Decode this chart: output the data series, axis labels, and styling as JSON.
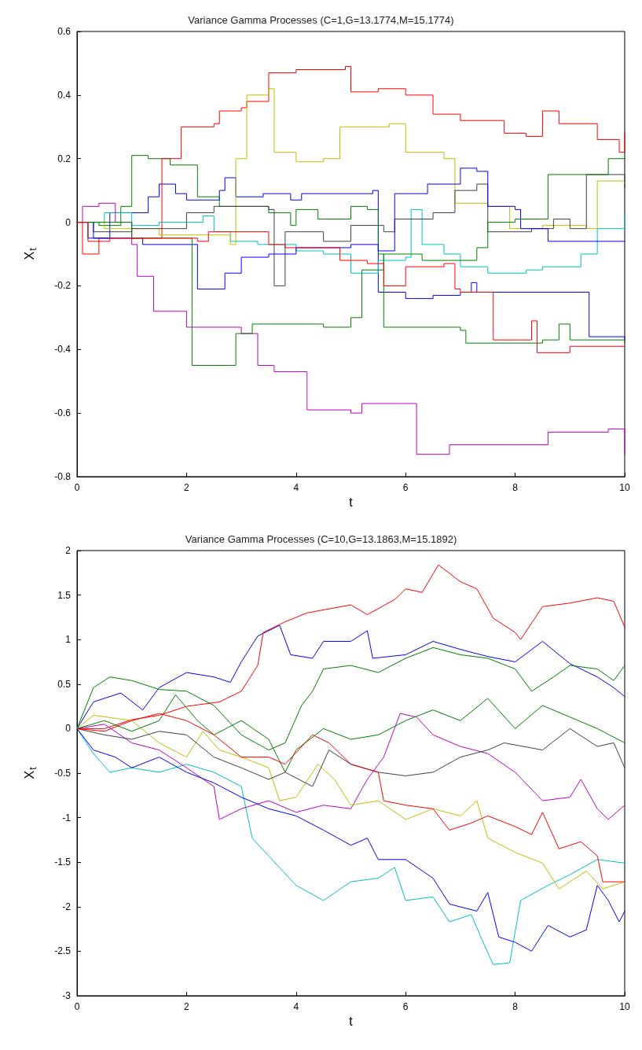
{
  "chart_data": [
    {
      "type": "step",
      "title": "Variance Gamma Processes (C=1,G=13.1774,M=15.1774)",
      "xlabel": "t",
      "ylabel": "X$_{t}$",
      "xlim": [
        0,
        10
      ],
      "ylim": [
        -0.8,
        0.6
      ],
      "xticks": [
        0,
        2,
        4,
        6,
        8,
        10
      ],
      "yticks": [
        -0.8,
        -0.6,
        -0.4,
        -0.2,
        0,
        0.2,
        0.4,
        0.6
      ],
      "grid": false,
      "series": [
        {
          "color": "#0000ff",
          "x": [
            0,
            0.2,
            0.6,
            1.3,
            1.5,
            1.8,
            2.0,
            2.6,
            2.7,
            2.9,
            3.4,
            3.9,
            4.1,
            5.4,
            5.5,
            6.0,
            6.5,
            7.0,
            7.2,
            7.3,
            9.3,
            9.35,
            10
          ],
          "values": [
            0,
            -0.05,
            0.03,
            0.08,
            0.12,
            0.09,
            0.07,
            0.1,
            0.14,
            0.08,
            0.09,
            0.07,
            0.09,
            0.1,
            -0.22,
            -0.24,
            -0.23,
            -0.22,
            -0.19,
            -0.22,
            -0.22,
            -0.36,
            -0.37
          ]
        },
        {
          "color": "#008000",
          "x": [
            0,
            0.4,
            0.8,
            1.0,
            1.3,
            1.7,
            2.2,
            2.6,
            3.5,
            3.9,
            4.0,
            4.4,
            5.0,
            5.3,
            5.5,
            5.6,
            7.0,
            7.1,
            8.5,
            8.8,
            9.0,
            10
          ],
          "values": [
            0,
            -0.01,
            0.05,
            0.21,
            0.2,
            0.18,
            0.08,
            0.05,
            0.03,
            -0.01,
            0.04,
            0.01,
            0.05,
            0.04,
            -0.1,
            -0.33,
            -0.34,
            -0.38,
            -0.37,
            -0.32,
            -0.37,
            -0.38
          ]
        },
        {
          "color": "#ff0000",
          "x": [
            0,
            0.1,
            0.4,
            1.55,
            1.9,
            2.5,
            2.6,
            3.0,
            3.1,
            3.5,
            4.0,
            4.9,
            5.0,
            5.5,
            6.0,
            6.5,
            7.0,
            7.8,
            8.2,
            8.5,
            8.8,
            9.5,
            9.9,
            10
          ],
          "values": [
            0,
            -0.1,
            -0.05,
            0.2,
            0.3,
            0.31,
            0.35,
            0.36,
            0.38,
            0.47,
            0.48,
            0.49,
            0.41,
            0.42,
            0.4,
            0.34,
            0.32,
            0.28,
            0.27,
            0.35,
            0.31,
            0.26,
            0.22,
            0.28
          ]
        },
        {
          "color": "#00bfbf",
          "x": [
            0,
            0.5,
            1.0,
            1.5,
            2.3,
            2.5,
            2.8,
            3.3,
            4.0,
            4.5,
            5.0,
            5.5,
            6.0,
            6.1,
            6.3,
            6.7,
            7.0,
            7.5,
            8.2,
            8.5,
            9.2,
            9.5,
            10
          ],
          "values": [
            0,
            0.03,
            -0.01,
            0,
            0.02,
            -0.03,
            -0.06,
            -0.07,
            -0.09,
            -0.1,
            -0.16,
            -0.12,
            -0.11,
            0.04,
            -0.07,
            -0.1,
            -0.14,
            -0.16,
            -0.15,
            -0.14,
            -0.1,
            -0.02,
            0.02
          ]
        },
        {
          "color": "#bf00bf",
          "x": [
            0,
            0.1,
            0.4,
            0.7,
            1.0,
            1.1,
            1.4,
            2.0,
            3.0,
            3.3,
            3.6,
            4.2,
            5.0,
            5.2,
            5.9,
            6.2,
            6.8,
            8.0,
            8.6,
            9.7,
            10
          ],
          "values": [
            0,
            0.05,
            0.06,
            0,
            -0.07,
            -0.17,
            -0.28,
            -0.33,
            -0.35,
            -0.45,
            -0.47,
            -0.59,
            -0.6,
            -0.57,
            -0.57,
            -0.73,
            -0.7,
            -0.7,
            -0.66,
            -0.65,
            -0.73
          ]
        },
        {
          "color": "#bfbf00",
          "x": [
            0,
            0.5,
            1.5,
            2.8,
            2.9,
            3.1,
            3.5,
            3.6,
            4.0,
            4.5,
            4.8,
            5.7,
            6.0,
            6.7,
            6.9,
            7.5,
            7.9,
            8.5,
            9.3,
            9.5,
            10
          ],
          "values": [
            0,
            -0.02,
            -0.04,
            -0.07,
            0.2,
            0.4,
            0.42,
            0.22,
            0.19,
            0.2,
            0.3,
            0.31,
            0.22,
            0.2,
            0.06,
            0.05,
            -0.02,
            -0.01,
            -0.02,
            0.13,
            0.12
          ]
        },
        {
          "color": "#404040",
          "x": [
            0,
            0.3,
            1.0,
            2.0,
            2.5,
            3.5,
            3.6,
            3.8,
            4.5,
            5.0,
            5.6,
            5.8,
            6.5,
            6.9,
            7.3,
            7.5,
            8.3,
            8.7,
            9.0,
            9.3,
            10
          ],
          "values": [
            0,
            -0.03,
            -0.02,
            0.03,
            0.05,
            0.04,
            -0.2,
            -0.03,
            -0.06,
            -0.01,
            -0.03,
            0.01,
            0.03,
            0.1,
            0.12,
            -0.03,
            -0.02,
            0.01,
            -0.02,
            0.15,
            0.11
          ]
        },
        {
          "color": "#0000ff",
          "x": [
            0,
            0.3,
            1.2,
            2.2,
            2.7,
            3.0,
            3.5,
            4.0,
            5.0,
            5.5,
            5.8,
            6.4,
            7.0,
            7.3,
            7.5,
            8.0,
            8.1,
            8.6,
            10
          ],
          "values": [
            0,
            -0.05,
            -0.07,
            -0.21,
            -0.16,
            -0.11,
            -0.1,
            -0.08,
            -0.07,
            -0.09,
            0.09,
            0.12,
            0.17,
            0.16,
            0.05,
            0.04,
            -0.02,
            -0.06,
            -0.06
          ]
        },
        {
          "color": "#008000",
          "x": [
            0,
            1.0,
            2.1,
            2.8,
            2.9,
            3.2,
            4.5,
            5.0,
            5.2,
            5.6,
            6.3,
            7.3,
            7.5,
            8.0,
            8.6,
            9.7,
            10
          ],
          "values": [
            0,
            -0.05,
            -0.45,
            -0.45,
            -0.35,
            -0.32,
            -0.33,
            -0.3,
            -0.15,
            -0.1,
            -0.12,
            -0.08,
            0,
            0.01,
            0.15,
            0.2,
            0.2
          ]
        },
        {
          "color": "#ff0000",
          "x": [
            0,
            0.2,
            0.6,
            2.2,
            2.4,
            3.5,
            3.8,
            4.8,
            5.3,
            5.6,
            6.0,
            6.7,
            6.9,
            7.0,
            7.6,
            8.1,
            8.3,
            8.4,
            9.0,
            10
          ],
          "values": [
            0,
            -0.06,
            -0.05,
            -0.06,
            -0.03,
            -0.07,
            -0.08,
            -0.12,
            -0.13,
            -0.2,
            -0.14,
            -0.13,
            -0.21,
            -0.22,
            -0.37,
            -0.37,
            -0.31,
            -0.41,
            -0.39,
            -0.39
          ]
        }
      ]
    },
    {
      "type": "line",
      "title": "Variance Gamma Processes (C=10,G=13.1863,M=15.1892)",
      "xlabel": "t",
      "ylabel": "X$_{t}$",
      "xlim": [
        0,
        10
      ],
      "ylim": [
        -3,
        2
      ],
      "xticks": [
        0,
        2,
        4,
        6,
        8,
        10
      ],
      "yticks": [
        -3,
        -2.5,
        -2,
        -1.5,
        -1,
        -0.5,
        0,
        0.5,
        1,
        1.5,
        2
      ],
      "grid": false,
      "series": [
        {
          "color": "#0000ff",
          "x": [
            0,
            0.3,
            0.8,
            1.2,
            1.5,
            2,
            2.5,
            2.8,
            3,
            3.3,
            3.7,
            3.9,
            4.3,
            4.5,
            5,
            5.3,
            5.4,
            6,
            6.5,
            7,
            7.5,
            8,
            8.5,
            9,
            9.5,
            9.8,
            10
          ],
          "values": [
            0,
            0.3,
            0.4,
            0.21,
            0.46,
            0.63,
            0.58,
            0.52,
            0.75,
            1.04,
            1.16,
            0.83,
            0.79,
            0.98,
            0.98,
            1.1,
            0.79,
            0.83,
            0.98,
            0.89,
            0.81,
            0.75,
            0.98,
            0.73,
            0.58,
            0.46,
            0.36
          ]
        },
        {
          "color": "#008000",
          "x": [
            0,
            0.3,
            0.6,
            1,
            1.5,
            2,
            2.5,
            3,
            3.5,
            3.8,
            4.1,
            4.3,
            4.5,
            5,
            5.5,
            6,
            6.5,
            7,
            7.5,
            8,
            8.3,
            8.7,
            9,
            9.5,
            9.8,
            10
          ],
          "values": [
            0,
            0.46,
            0.58,
            0.54,
            0.44,
            0.42,
            0.26,
            -0.07,
            -0.24,
            -0.16,
            0.26,
            0.42,
            0.67,
            0.71,
            0.63,
            0.79,
            0.91,
            0.83,
            0.79,
            0.67,
            0.42,
            0.58,
            0.71,
            0.67,
            0.54,
            0.71
          ]
        },
        {
          "color": "#ff0000",
          "x": [
            0,
            0.5,
            1,
            1.5,
            2,
            2.6,
            3,
            3.3,
            3.4,
            3.8,
            4.2,
            5,
            5.3,
            5.8,
            6,
            6.3,
            6.6,
            7,
            7.3,
            7.6,
            8,
            8.1,
            8.5,
            9,
            9.5,
            9.8,
            10
          ],
          "values": [
            0,
            0,
            0.1,
            0.15,
            0.25,
            0.3,
            0.42,
            0.71,
            1.08,
            1.2,
            1.3,
            1.39,
            1.28,
            1.45,
            1.57,
            1.53,
            1.84,
            1.65,
            1.57,
            1.24,
            1.08,
            1,
            1.37,
            1.41,
            1.47,
            1.43,
            1.14
          ]
        },
        {
          "color": "#00bfbf",
          "x": [
            0,
            0.3,
            0.6,
            1,
            1.5,
            2,
            2.5,
            3,
            3.2,
            3.5,
            4,
            4.5,
            5,
            5.5,
            5.8,
            6,
            6.5,
            6.8,
            7.2,
            7.4,
            7.6,
            7.9,
            8.1,
            8.6,
            9,
            9.5,
            10
          ],
          "values": [
            0,
            -0.28,
            -0.49,
            -0.44,
            -0.49,
            -0.4,
            -0.49,
            -0.65,
            -1.23,
            -1.43,
            -1.76,
            -1.93,
            -1.72,
            -1.68,
            -1.56,
            -1.93,
            -1.89,
            -2.17,
            -2.09,
            -2.38,
            -2.65,
            -2.63,
            -1.93,
            -1.76,
            -1.64,
            -1.47,
            -1.51
          ]
        },
        {
          "color": "#bf00bf",
          "x": [
            0,
            0.5,
            1,
            1.5,
            2,
            2.5,
            2.6,
            3,
            3.5,
            4,
            4.5,
            5,
            5.3,
            5.6,
            5.9,
            6.2,
            6.5,
            7,
            7.5,
            8,
            8.5,
            9,
            9.2,
            9.5,
            9.7,
            10
          ],
          "values": [
            0,
            0.05,
            -0.16,
            -0.24,
            -0.44,
            -0.65,
            -1.02,
            -0.9,
            -0.81,
            -0.94,
            -0.86,
            -0.9,
            -0.57,
            -0.32,
            0.17,
            0.13,
            -0.07,
            -0.2,
            -0.28,
            -0.49,
            -0.81,
            -0.77,
            -0.57,
            -0.9,
            -1.02,
            -0.86
          ]
        },
        {
          "color": "#bfbf00",
          "x": [
            0,
            0.3,
            1,
            1.5,
            2,
            2.3,
            2.6,
            3,
            3.5,
            3.7,
            4,
            4.4,
            4.7,
            5,
            5.5,
            6,
            6.5,
            7,
            7.3,
            7.5,
            8,
            8.5,
            8.8,
            9.3,
            9.6,
            10
          ],
          "values": [
            0,
            0.15,
            0.09,
            -0.16,
            -0.32,
            -0.03,
            -0.24,
            -0.32,
            -0.44,
            -0.81,
            -0.77,
            -0.4,
            -0.57,
            -0.86,
            -0.81,
            -1.02,
            -0.9,
            -0.98,
            -0.81,
            -1.23,
            -1.39,
            -1.51,
            -1.8,
            -1.6,
            -1.8,
            -1.72
          ]
        },
        {
          "color": "#404040",
          "x": [
            0,
            0.5,
            1,
            1.5,
            2,
            2.5,
            3,
            3.5,
            3.8,
            4.3,
            4.6,
            5,
            5.5,
            6,
            6.5,
            7,
            7.5,
            7.8,
            8.5,
            9,
            9.5,
            9.8,
            10
          ],
          "values": [
            0,
            -0.07,
            -0.12,
            -0.03,
            -0.07,
            -0.32,
            -0.44,
            -0.57,
            -0.49,
            -0.65,
            -0.24,
            -0.4,
            -0.49,
            -0.53,
            -0.49,
            -0.32,
            -0.24,
            -0.16,
            -0.24,
            0,
            -0.2,
            -0.16,
            -0.44
          ]
        },
        {
          "color": "#0000ff",
          "x": [
            0,
            0.3,
            0.7,
            1,
            1.5,
            2,
            2.5,
            3,
            3.5,
            4,
            4.5,
            5,
            5.3,
            5.5,
            6,
            6.5,
            6.8,
            7.3,
            7.5,
            7.7,
            8,
            8.3,
            8.6,
            9,
            9.3,
            9.5,
            9.7,
            9.9,
            10
          ],
          "values": [
            0,
            -0.24,
            -0.32,
            -0.44,
            -0.32,
            -0.49,
            -0.61,
            -0.77,
            -0.9,
            -0.98,
            -1.14,
            -1.31,
            -1.23,
            -1.47,
            -1.47,
            -1.68,
            -1.97,
            -2.05,
            -1.84,
            -2.34,
            -2.4,
            -2.5,
            -2.21,
            -2.34,
            -2.26,
            -1.76,
            -1.93,
            -2.17,
            -2.05
          ]
        },
        {
          "color": "#008000",
          "x": [
            0,
            0.5,
            1,
            1.5,
            1.8,
            2.2,
            2.5,
            3,
            3.5,
            3.8,
            4,
            4.5,
            5,
            5.5,
            6,
            6.5,
            7,
            7.5,
            8,
            8.5,
            9,
            9.5,
            10
          ],
          "values": [
            0,
            0.09,
            -0.03,
            0.09,
            0.38,
            0.09,
            -0.07,
            0.09,
            -0.12,
            -0.49,
            -0.24,
            0,
            -0.12,
            -0.07,
            0.09,
            0.21,
            0.09,
            0.34,
            0,
            0.26,
            0.13,
            0,
            -0.16
          ]
        },
        {
          "color": "#ff0000",
          "x": [
            0,
            0.5,
            1,
            1.5,
            2,
            2.5,
            3,
            3.5,
            3.8,
            4.3,
            4.6,
            5,
            5.5,
            5.6,
            6,
            6.5,
            6.8,
            7.2,
            7.5,
            8,
            8.3,
            8.5,
            8.8,
            9.2,
            9.5,
            9.6,
            10
          ],
          "values": [
            0,
            -0.03,
            0.09,
            0.17,
            0.09,
            -0.07,
            -0.32,
            -0.32,
            -0.4,
            -0.07,
            -0.16,
            -0.4,
            -0.49,
            -0.81,
            -0.86,
            -0.9,
            -1.14,
            -1.06,
            -0.98,
            -1.1,
            -1.19,
            -0.94,
            -1.35,
            -1.27,
            -1.43,
            -1.72,
            -1.72
          ]
        }
      ]
    }
  ]
}
